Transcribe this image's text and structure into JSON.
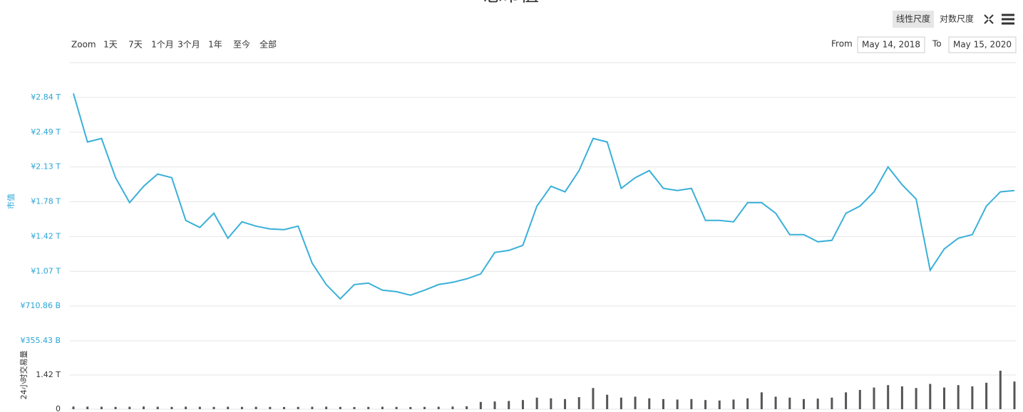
{
  "controls": {
    "scale_linear": "线性尺度",
    "scale_log": "对数尺度",
    "zoom_label": "Zoom",
    "zoom_buttons": [
      "1天",
      "7天",
      "1个月",
      "3个月",
      "1年",
      "至今",
      "全部"
    ],
    "from_label": "From",
    "from_date": "May 14, 2018",
    "to_label": "To",
    "to_date": "May 15, 2020"
  },
  "chart_data": [
    {
      "type": "line",
      "title": "总市值",
      "y_label": "市值",
      "color": "#3ab0d8",
      "grid": true,
      "ylim": [
        355.43,
        3198.87
      ],
      "yticks": [
        {
          "value": 355.43,
          "label": "¥355.43 B"
        },
        {
          "value": 710.86,
          "label": "¥710.86 B"
        },
        {
          "value": 1066.29,
          "label": "¥1.07 T"
        },
        {
          "value": 1421.72,
          "label": "¥1.42 T"
        },
        {
          "value": 1777.15,
          "label": "¥1.78 T"
        },
        {
          "value": 2132.58,
          "label": "¥2.13 T"
        },
        {
          "value": 2488.01,
          "label": "¥2.49 T"
        },
        {
          "value": 2843.44,
          "label": "¥2.84 T"
        }
      ],
      "values": [
        2883,
        2388,
        2424,
        2023,
        1768,
        1936,
        2060,
        2023,
        1586,
        1514,
        1659,
        1404,
        1572,
        1528,
        1499,
        1492,
        1528,
        1149,
        931,
        785,
        931,
        945,
        873,
        858,
        822,
        873,
        931,
        953,
        989,
        1040,
        1259,
        1280,
        1331,
        1732,
        1936,
        1878,
        2096,
        2424,
        2388,
        1914,
        2023,
        2096,
        1914,
        1892,
        1914,
        1586,
        1586,
        1572,
        1768,
        1768,
        1659,
        1441,
        1441,
        1368,
        1382,
        1659,
        1732,
        1878,
        2133,
        1951,
        1805,
        1077,
        1295,
        1404,
        1441,
        1732,
        1878,
        1892
      ]
    },
    {
      "type": "bar",
      "y_label": "24小时交易量",
      "color": "#555555",
      "ylim": [
        0,
        2843.44
      ],
      "yticks": [
        0,
        {
          "value": 1421.72,
          "label": "1.42 T"
        }
      ],
      "values": [
        110,
        105,
        100,
        95,
        100,
        110,
        100,
        95,
        105,
        100,
        95,
        100,
        95,
        100,
        95,
        90,
        95,
        100,
        105,
        95,
        90,
        95,
        100,
        95,
        90,
        95,
        100,
        110,
        120,
        300,
        320,
        340,
        380,
        480,
        450,
        420,
        500,
        880,
        600,
        480,
        520,
        450,
        420,
        400,
        420,
        380,
        360,
        400,
        450,
        700,
        520,
        480,
        420,
        440,
        480,
        700,
        800,
        900,
        1000,
        950,
        880,
        1050,
        900,
        1000,
        950,
        1100,
        1600,
        1150
      ]
    }
  ]
}
